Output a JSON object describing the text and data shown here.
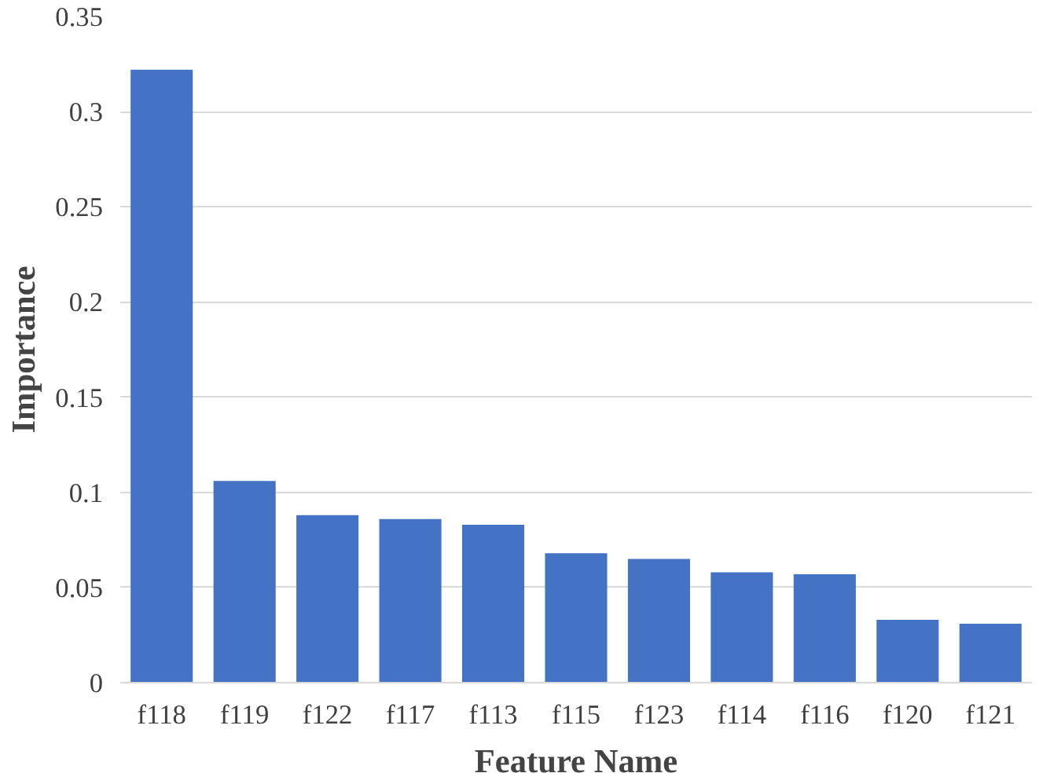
{
  "chart_data": {
    "type": "bar",
    "xlabel": "Feature Name",
    "ylabel": "Importance",
    "categories": [
      "f118",
      "f119",
      "f122",
      "f117",
      "f113",
      "f115",
      "f123",
      "f114",
      "f116",
      "f120",
      "f121"
    ],
    "values": [
      0.322,
      0.106,
      0.088,
      0.086,
      0.083,
      0.068,
      0.065,
      0.058,
      0.057,
      0.033,
      0.031
    ],
    "color": "#4472c4",
    "ylim": [
      0,
      0.35
    ],
    "yticks": [
      0,
      0.05,
      0.1,
      0.15,
      0.2,
      0.25,
      0.3,
      0.35
    ],
    "grid": "y"
  }
}
